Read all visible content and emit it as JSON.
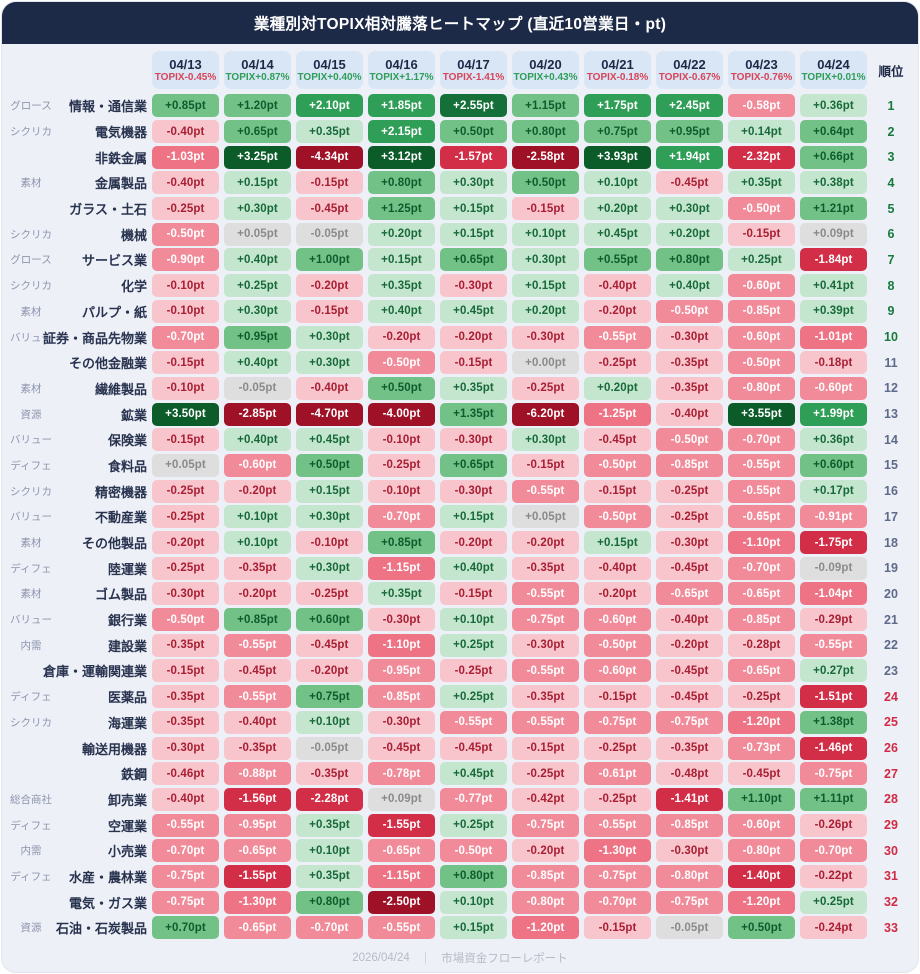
{
  "title": "業種別対TOPIX相対騰落ヒートマップ (直近10営業日・pt)",
  "rank_header": "順位",
  "footer": {
    "date": "2026/04/24",
    "separator": "｜",
    "source": "市場資金フローレポート"
  },
  "colors": {
    "header_bg": "#1d2a47",
    "card_bg": "#eef0f7",
    "date_pill_bg": "#d9e6f5",
    "date_text": "#1d2a47",
    "topix_up": "#2e9e58",
    "topix_down": "#d84459",
    "category_text": "#8d95ae",
    "sector_text": "#28334f",
    "footer_text": "#b6bac6",
    "rank_top": "#157a3c",
    "rank_middle": "#5d6a8a",
    "rank_bottom": "#cf2b44"
  },
  "chart_data": {
    "type": "heatmap",
    "unit": "pt",
    "value_suffix": "pt",
    "legend_position": "none",
    "grid": false,
    "columns": [
      {
        "date": "04/13",
        "topix_label": "TOPIX-0.45%",
        "topix_change_pct": -0.45,
        "dir": "down"
      },
      {
        "date": "04/14",
        "topix_label": "TOPIX+0.87%",
        "topix_change_pct": 0.87,
        "dir": "up"
      },
      {
        "date": "04/15",
        "topix_label": "TOPIX+0.40%",
        "topix_change_pct": 0.4,
        "dir": "up"
      },
      {
        "date": "04/16",
        "topix_label": "TOPIX+1.17%",
        "topix_change_pct": 1.17,
        "dir": "up"
      },
      {
        "date": "04/17",
        "topix_label": "TOPIX-1.41%",
        "topix_change_pct": -1.41,
        "dir": "down"
      },
      {
        "date": "04/20",
        "topix_label": "TOPIX+0.43%",
        "topix_change_pct": 0.43,
        "dir": "up"
      },
      {
        "date": "04/21",
        "topix_label": "TOPIX-0.18%",
        "topix_change_pct": -0.18,
        "dir": "down"
      },
      {
        "date": "04/22",
        "topix_label": "TOPIX-0.67%",
        "topix_change_pct": -0.67,
        "dir": "down"
      },
      {
        "date": "04/23",
        "topix_label": "TOPIX-0.76%",
        "topix_change_pct": -0.76,
        "dir": "down"
      },
      {
        "date": "04/24",
        "topix_label": "TOPIX+0.01%",
        "topix_change_pct": 0.01,
        "dir": "up"
      }
    ],
    "rows": [
      {
        "rank": 1,
        "category": "グロース",
        "name": "情報・通信業",
        "values": [
          0.85,
          1.2,
          2.1,
          1.85,
          2.55,
          1.15,
          1.75,
          2.45,
          -0.58,
          0.36
        ]
      },
      {
        "rank": 2,
        "category": "シクリカ",
        "name": "電気機器",
        "values": [
          -0.4,
          0.65,
          0.35,
          2.15,
          0.5,
          0.8,
          0.75,
          0.95,
          0.14,
          0.64
        ]
      },
      {
        "rank": 3,
        "category": "",
        "name": "非鉄金属",
        "values": [
          -1.03,
          3.25,
          -4.34,
          3.12,
          -1.57,
          -2.58,
          3.93,
          1.94,
          -2.32,
          0.66
        ]
      },
      {
        "rank": 4,
        "category": "素材",
        "name": "金属製品",
        "values": [
          -0.4,
          0.15,
          -0.15,
          0.8,
          0.3,
          0.5,
          0.1,
          -0.45,
          0.35,
          0.38
        ]
      },
      {
        "rank": 5,
        "category": "",
        "name": "ガラス・土石",
        "values": [
          -0.25,
          0.3,
          -0.45,
          1.25,
          0.15,
          -0.15,
          0.2,
          0.3,
          -0.5,
          1.21
        ]
      },
      {
        "rank": 6,
        "category": "シクリカ",
        "name": "機械",
        "values": [
          -0.5,
          0.05,
          -0.05,
          0.2,
          0.15,
          0.1,
          0.45,
          0.2,
          -0.15,
          0.09
        ]
      },
      {
        "rank": 7,
        "category": "グロース",
        "name": "サービス業",
        "values": [
          -0.9,
          0.4,
          1.0,
          0.15,
          0.65,
          0.3,
          0.55,
          0.8,
          0.25,
          -1.84
        ]
      },
      {
        "rank": 8,
        "category": "シクリカ",
        "name": "化学",
        "values": [
          -0.1,
          0.25,
          -0.2,
          0.35,
          -0.3,
          0.15,
          -0.4,
          0.4,
          -0.6,
          0.41
        ]
      },
      {
        "rank": 9,
        "category": "素材",
        "name": "パルプ・紙",
        "values": [
          -0.1,
          0.3,
          -0.15,
          0.4,
          0.45,
          0.2,
          -0.2,
          -0.5,
          -0.85,
          0.39
        ]
      },
      {
        "rank": 10,
        "category": "バリュー",
        "name": "証券・商品先物業",
        "values": [
          -0.7,
          0.95,
          0.3,
          -0.2,
          -0.2,
          -0.3,
          -0.55,
          -0.3,
          -0.6,
          -1.01
        ]
      },
      {
        "rank": 11,
        "category": "",
        "name": "その他金融業",
        "values": [
          -0.15,
          0.4,
          0.3,
          -0.5,
          -0.15,
          0.0,
          -0.25,
          -0.35,
          -0.5,
          -0.18
        ]
      },
      {
        "rank": 12,
        "category": "素材",
        "name": "繊維製品",
        "values": [
          -0.1,
          -0.05,
          -0.4,
          0.5,
          0.35,
          -0.25,
          0.2,
          -0.35,
          -0.8,
          -0.6
        ]
      },
      {
        "rank": 13,
        "category": "資源",
        "name": "鉱業",
        "values": [
          3.5,
          -2.85,
          -4.7,
          -4.0,
          1.35,
          -6.2,
          -1.25,
          -0.4,
          3.55,
          1.99
        ]
      },
      {
        "rank": 14,
        "category": "バリュー",
        "name": "保険業",
        "values": [
          -0.15,
          0.4,
          0.45,
          -0.1,
          -0.3,
          0.3,
          -0.45,
          -0.5,
          -0.7,
          0.36
        ]
      },
      {
        "rank": 15,
        "category": "ディフェ",
        "name": "食料品",
        "values": [
          0.05,
          -0.6,
          0.5,
          -0.25,
          0.65,
          -0.15,
          -0.5,
          -0.85,
          -0.55,
          0.6
        ]
      },
      {
        "rank": 16,
        "category": "シクリカ",
        "name": "精密機器",
        "values": [
          -0.25,
          -0.2,
          0.15,
          -0.1,
          -0.3,
          -0.55,
          -0.15,
          -0.25,
          -0.55,
          0.17
        ]
      },
      {
        "rank": 17,
        "category": "バリュー",
        "name": "不動産業",
        "values": [
          -0.25,
          0.1,
          0.3,
          -0.7,
          0.15,
          0.05,
          -0.5,
          -0.25,
          -0.65,
          -0.91
        ]
      },
      {
        "rank": 18,
        "category": "素材",
        "name": "その他製品",
        "values": [
          -0.2,
          0.1,
          -0.1,
          0.85,
          -0.2,
          -0.2,
          0.15,
          -0.3,
          -1.1,
          -1.75
        ]
      },
      {
        "rank": 19,
        "category": "ディフェ",
        "name": "陸運業",
        "values": [
          -0.25,
          -0.35,
          0.3,
          -1.15,
          0.4,
          -0.35,
          -0.4,
          -0.45,
          -0.7,
          -0.09
        ]
      },
      {
        "rank": 20,
        "category": "素材",
        "name": "ゴム製品",
        "values": [
          -0.3,
          -0.2,
          -0.25,
          0.35,
          -0.15,
          -0.55,
          -0.2,
          -0.65,
          -0.65,
          -1.04
        ]
      },
      {
        "rank": 21,
        "category": "バリュー",
        "name": "銀行業",
        "values": [
          -0.5,
          0.85,
          0.6,
          -0.3,
          0.1,
          -0.75,
          -0.6,
          -0.4,
          -0.85,
          -0.29
        ]
      },
      {
        "rank": 22,
        "category": "内需",
        "name": "建設業",
        "values": [
          -0.35,
          -0.55,
          -0.45,
          -1.1,
          0.25,
          -0.3,
          -0.5,
          -0.2,
          -0.28,
          -0.55
        ]
      },
      {
        "rank": 23,
        "category": "",
        "name": "倉庫・運輸関連業",
        "values": [
          -0.15,
          -0.45,
          -0.2,
          -0.95,
          -0.25,
          -0.55,
          -0.6,
          -0.45,
          -0.65,
          0.27
        ]
      },
      {
        "rank": 24,
        "category": "ディフェ",
        "name": "医薬品",
        "values": [
          -0.35,
          -0.55,
          0.75,
          -0.85,
          0.25,
          -0.35,
          -0.15,
          -0.45,
          -0.25,
          -1.51
        ]
      },
      {
        "rank": 25,
        "category": "シクリカ",
        "name": "海運業",
        "values": [
          -0.35,
          -0.4,
          0.1,
          -0.3,
          -0.55,
          -0.55,
          -0.75,
          -0.75,
          -1.2,
          1.38
        ]
      },
      {
        "rank": 26,
        "category": "",
        "name": "輸送用機器",
        "values": [
          -0.3,
          -0.35,
          -0.05,
          -0.45,
          -0.45,
          -0.15,
          -0.25,
          -0.35,
          -0.73,
          -1.46
        ]
      },
      {
        "rank": 27,
        "category": "",
        "name": "鉄鋼",
        "values": [
          -0.46,
          -0.88,
          -0.35,
          -0.78,
          0.45,
          -0.25,
          -0.61,
          -0.48,
          -0.45,
          -0.75
        ]
      },
      {
        "rank": 28,
        "category": "総合商社",
        "name": "卸売業",
        "values": [
          -0.4,
          -1.56,
          -2.28,
          0.09,
          -0.77,
          -0.42,
          -0.25,
          -1.41,
          1.1,
          1.11
        ]
      },
      {
        "rank": 29,
        "category": "ディフェ",
        "name": "空運業",
        "values": [
          -0.55,
          -0.95,
          0.35,
          -1.55,
          0.25,
          -0.75,
          -0.55,
          -0.85,
          -0.6,
          -0.26
        ]
      },
      {
        "rank": 30,
        "category": "内需",
        "name": "小売業",
        "values": [
          -0.7,
          -0.65,
          0.1,
          -0.65,
          -0.5,
          -0.2,
          -1.3,
          -0.3,
          -0.8,
          -0.7
        ]
      },
      {
        "rank": 31,
        "category": "ディフェ",
        "name": "水産・農林業",
        "values": [
          -0.75,
          -1.55,
          0.35,
          -1.15,
          0.8,
          -0.85,
          -0.75,
          -0.8,
          -1.4,
          -0.22
        ]
      },
      {
        "rank": 32,
        "category": "",
        "name": "電気・ガス業",
        "values": [
          -0.75,
          -1.3,
          0.8,
          -2.5,
          0.1,
          -0.8,
          -0.7,
          -0.75,
          -1.2,
          0.25
        ]
      },
      {
        "rank": 33,
        "category": "資源",
        "name": "石油・石炭製品",
        "values": [
          0.7,
          -0.65,
          -0.7,
          -0.55,
          0.15,
          -1.2,
          -0.15,
          -0.05,
          0.5,
          -0.24
        ]
      }
    ],
    "color_scale": [
      {
        "min": 3.0,
        "bg": "#0c5c2a",
        "text": "#ffffff"
      },
      {
        "min": 2.5,
        "bg": "#156f38",
        "text": "#ffffff"
      },
      {
        "min": 1.5,
        "bg": "#2f9e57",
        "text": "#ffffff"
      },
      {
        "min": 0.5,
        "bg": "#72c287",
        "text": "#0d5c2e"
      },
      {
        "min": 0.095,
        "bg": "#c5e6ce",
        "text": "#17693a"
      },
      {
        "min": -0.0949,
        "bg": "#dedede",
        "text": "#8a8a8a"
      },
      {
        "min": -0.4949,
        "bg": "#f8c5cc",
        "text": "#a81e33"
      },
      {
        "min": -0.9949,
        "bg": "#f28b99",
        "text": "#ffffff"
      },
      {
        "min": -1.3949,
        "bg": "#ee7384",
        "text": "#ffffff"
      },
      {
        "min": -2.4949,
        "bg": "#d22e47",
        "text": "#ffffff"
      },
      {
        "min": -99,
        "bg": "#9e1126",
        "text": "#ffffff"
      }
    ],
    "rank_groups": {
      "top_max": 10,
      "middle_max": 23
    }
  }
}
